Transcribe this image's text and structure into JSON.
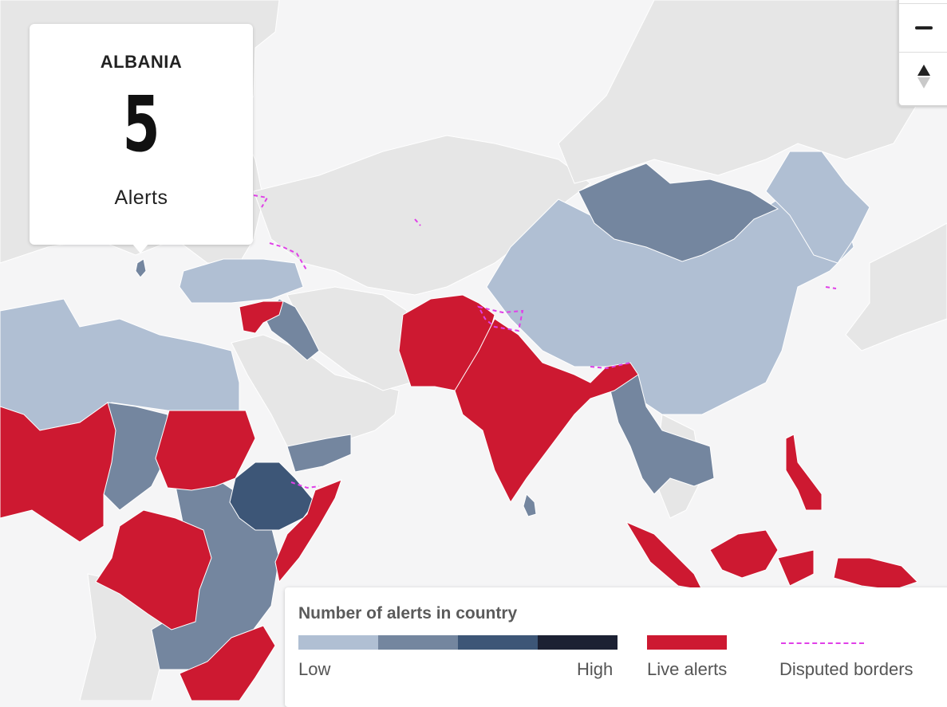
{
  "tooltip": {
    "country": "ALBANIA",
    "count": "5",
    "unit": "Alerts"
  },
  "zoom": {
    "out_label": "−",
    "reset_label": "reset-north"
  },
  "legend": {
    "title": "Number of alerts in country",
    "low": "Low",
    "high": "High",
    "live": "Live alerts",
    "disputed": "Disputed borders",
    "scale_colors": [
      "#b0bfd3",
      "#74869f",
      "#3d5677",
      "#1c2133"
    ],
    "live_color": "#cd1931",
    "disputed_color": "#e040e8"
  },
  "colors": {
    "sea": "#f5f5f6",
    "no_data": "#e6e6e6",
    "low": "#b0bfd3",
    "mid": "#74869f",
    "high": "#3d5677",
    "live": "#cd1931"
  },
  "regions": [
    {
      "name": "Albania",
      "level": "mid"
    },
    {
      "name": "Turkey",
      "level": "low"
    },
    {
      "name": "Syria",
      "level": "live"
    },
    {
      "name": "Iraq",
      "level": "mid"
    },
    {
      "name": "Afghanistan",
      "level": "live"
    },
    {
      "name": "Pakistan",
      "level": "live"
    },
    {
      "name": "India",
      "level": "live"
    },
    {
      "name": "China",
      "level": "low"
    },
    {
      "name": "Mongolia",
      "level": "mid"
    },
    {
      "name": "Myanmar",
      "level": "mid"
    },
    {
      "name": "Ethiopia",
      "level": "high"
    },
    {
      "name": "Sudan",
      "level": "live"
    },
    {
      "name": "Somalia",
      "level": "live"
    },
    {
      "name": "Nigeria",
      "level": "live"
    },
    {
      "name": "DR Congo",
      "level": "live"
    },
    {
      "name": "Philippines",
      "level": "live"
    },
    {
      "name": "Indonesia",
      "level": "live"
    }
  ]
}
